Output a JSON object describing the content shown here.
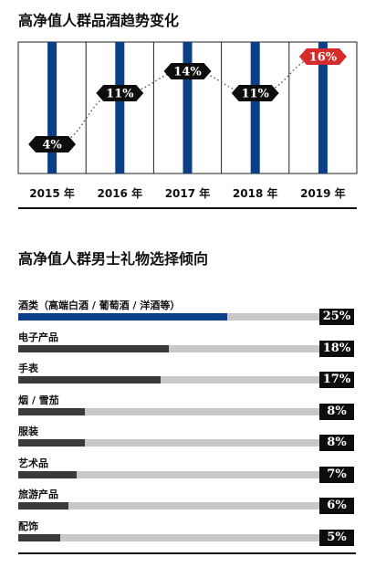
{
  "chart_data": [
    {
      "type": "bar",
      "title": "高净值人群品酒趋势变化",
      "categories": [
        "2015 年",
        "2016 年",
        "2017 年",
        "2018 年",
        "2019 年"
      ],
      "values": [
        4,
        11,
        14,
        11,
        16
      ],
      "value_labels": [
        "4%",
        "11%",
        "14%",
        "11%",
        "16%"
      ],
      "ylim": [
        0,
        18
      ],
      "highlight_index": 4,
      "colors": {
        "bar": "#0b3f8a",
        "badge": "#0d0d0d",
        "highlight": "#d42b2b",
        "trend": "#555555"
      }
    },
    {
      "type": "bar",
      "orientation": "horizontal",
      "title": "高净值人群男士礼物选择倾向",
      "categories": [
        "酒类（高端白酒 / 葡萄酒 / 洋酒等）",
        "电子产品",
        "手表",
        "烟 / 雪茄",
        "服装",
        "艺术品",
        "旅游产品",
        "配饰"
      ],
      "values": [
        25,
        18,
        17,
        8,
        8,
        7,
        6,
        5
      ],
      "value_labels": [
        "25%",
        "18%",
        "17%",
        "8%",
        "8%",
        "7%",
        "6%",
        "5%"
      ],
      "xlim": [
        0,
        36
      ],
      "colors": {
        "first": "#0b3f8a",
        "other": "#3a3a3a",
        "track": "#c8c8c8"
      }
    }
  ]
}
